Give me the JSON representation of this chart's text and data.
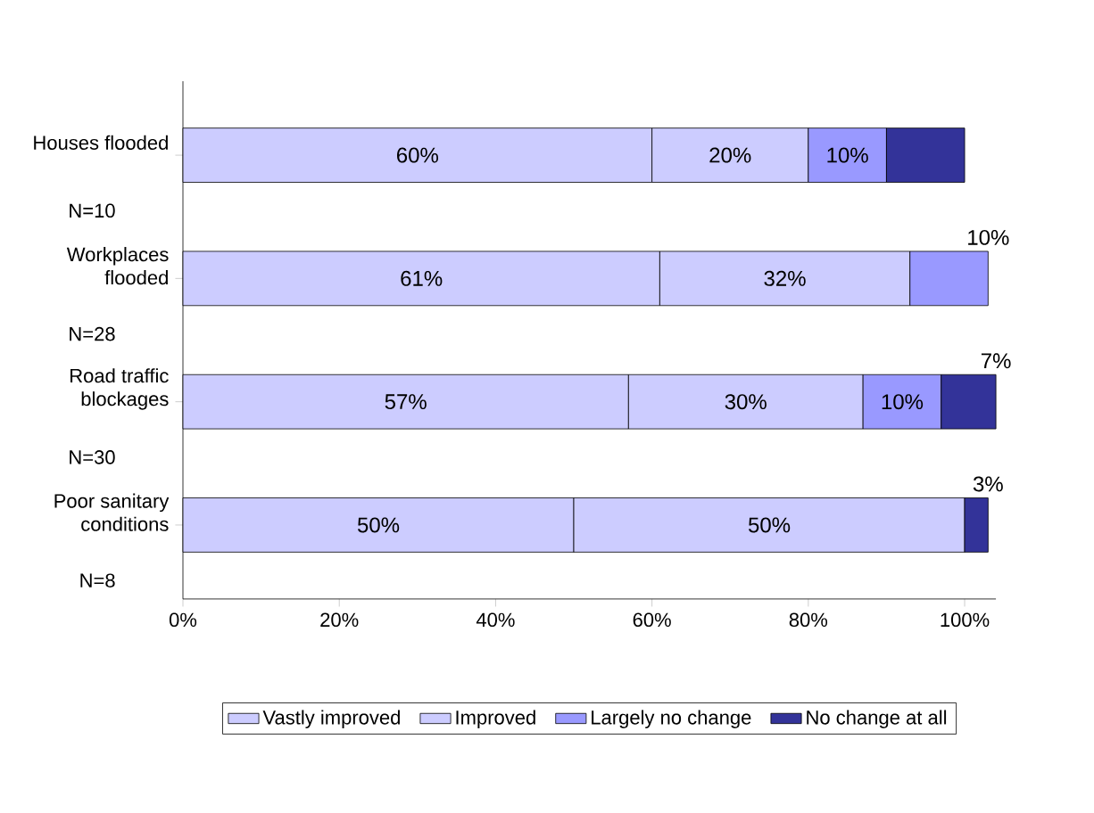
{
  "chart_data": {
    "type": "bar",
    "orientation": "horizontal",
    "stacked": true,
    "categories": [
      "Houses flooded",
      "Workplaces flooded",
      "Road traffic blockages",
      "Poor sanitary conditions"
    ],
    "series": [
      {
        "name": "Vastly improved",
        "color": "#ccccff",
        "values": [
          60,
          61,
          57,
          50
        ],
        "value_labels": [
          "60%",
          "61%",
          "57%",
          "50%"
        ]
      },
      {
        "name": "Improved",
        "color": "#ccccff",
        "values": [
          20,
          32,
          30,
          50
        ],
        "value_labels": [
          "20%",
          "32%",
          "30%",
          "50%"
        ]
      },
      {
        "name": "Largely no change",
        "color": "#9999ff",
        "values": [
          10,
          10,
          10,
          null
        ],
        "value_labels": [
          "10%",
          "10%",
          "10%",
          null
        ]
      },
      {
        "name": "No change at all",
        "color": "#333399",
        "values": [
          10,
          null,
          7,
          3
        ],
        "value_labels": [
          null,
          null,
          "7%",
          "3%"
        ]
      }
    ],
    "annotations": [
      "N=10",
      "N=28",
      "N=30",
      "N=8"
    ],
    "xlim": [
      0,
      104
    ],
    "xticks": [
      {
        "value": 0,
        "label": "0%"
      },
      {
        "value": 20,
        "label": "20%"
      },
      {
        "value": 40,
        "label": "40%"
      },
      {
        "value": 60,
        "label": "60%"
      },
      {
        "value": 80,
        "label": "80%"
      },
      {
        "value": 100,
        "label": "100%"
      }
    ],
    "legend": "bottom",
    "grid": false
  }
}
